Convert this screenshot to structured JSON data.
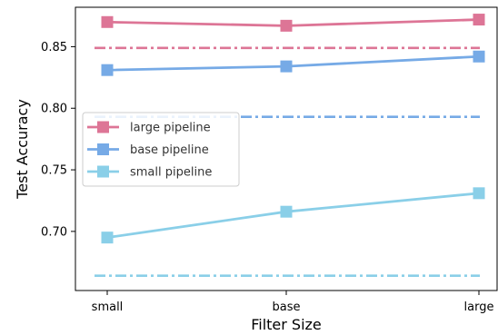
{
  "chart_data": {
    "type": "line",
    "xlabel": "Filter Size",
    "ylabel": "Test Accuracy",
    "categories": [
      "small",
      "base",
      "large"
    ],
    "ylim": [
      0.652,
      0.882
    ],
    "yticks": [
      0.7,
      0.75,
      0.8,
      0.85
    ],
    "ytick_labels": [
      "0.70",
      "0.75",
      "0.80",
      "0.85"
    ],
    "grid": false,
    "legend_position": "center-left",
    "series": [
      {
        "name": "large pipeline",
        "color": "#dd7596",
        "values": [
          0.87,
          0.867,
          0.872
        ],
        "baseline": 0.849
      },
      {
        "name": "base pipeline",
        "color": "#76aae6",
        "values": [
          0.831,
          0.834,
          0.842
        ],
        "baseline": 0.793
      },
      {
        "name": "small pipeline",
        "color": "#8acfe8",
        "values": [
          0.695,
          0.716,
          0.731
        ],
        "baseline": 0.664
      }
    ]
  }
}
